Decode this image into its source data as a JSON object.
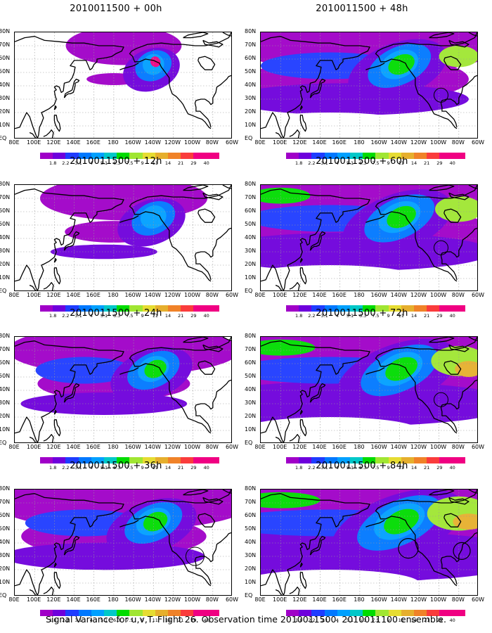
{
  "caption": "Signal Variance for u,v,T. Flight 26. Observation time 2010011500. 2010011100 ensemble.",
  "y_axis_labels": [
    "80N",
    "70N",
    "60N",
    "50N",
    "40N",
    "30N",
    "20N",
    "10N",
    "EQ"
  ],
  "x_axis_labels": [
    "80E",
    "100E",
    "120E",
    "140E",
    "160E",
    "180",
    "160W",
    "140W",
    "120W",
    "100W",
    "80W",
    "60W"
  ],
  "colorbar": {
    "labels": [
      "1.8",
      "2.2",
      "3.1",
      "4",
      "5.1",
      "6.3",
      "7.5",
      "9",
      "11",
      "14",
      "21",
      "29",
      "40"
    ],
    "colors": [
      "#a000c8",
      "#6e00dc",
      "#1e3cff",
      "#0078ff",
      "#00a0ff",
      "#00c8c8",
      "#00dc00",
      "#a0e632",
      "#e6dc32",
      "#e6af2d",
      "#f08228",
      "#fa3c3c",
      "#f00082"
    ]
  },
  "panels": [
    {
      "title": "2010011500 + 00h",
      "intensity": 0.25
    },
    {
      "title": "2010011500 + 48h",
      "intensity": 1.0
    },
    {
      "title": "2010011500 + 12h",
      "intensity": 0.45
    },
    {
      "title": "2010011500 + 60h",
      "intensity": 1.2
    },
    {
      "title": "2010011500 + 24h",
      "intensity": 0.7
    },
    {
      "title": "2010011500 + 72h",
      "intensity": 1.4
    },
    {
      "title": "2010011500 + 36h",
      "intensity": 0.85
    },
    {
      "title": "2010011500 + 84h",
      "intensity": 1.6
    }
  ]
}
